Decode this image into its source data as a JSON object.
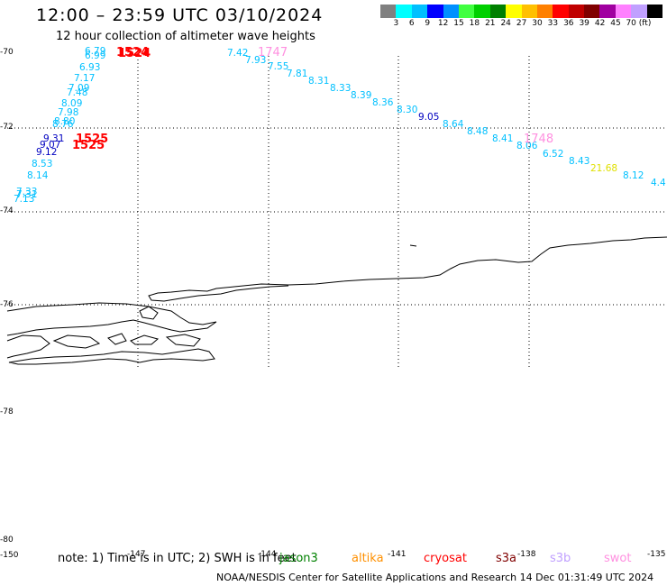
{
  "header": {
    "title": "12:00 – 23:59 UTC 03/10/2024",
    "subtitle": "12 hour collection of altimeter wave heights"
  },
  "colorbar": {
    "colors": [
      "#808080",
      "#00ffff",
      "#00c0ff",
      "#0000ff",
      "#0090ff",
      "#40ff40",
      "#00d000",
      "#008000",
      "#ffff00",
      "#ffc000",
      "#ff8000",
      "#ff0000",
      "#c00000",
      "#800000",
      "#a000a0",
      "#ff80ff",
      "#c0a0ff",
      "#000000"
    ],
    "labels": [
      "3",
      "6",
      "9",
      "12",
      "15",
      "18",
      "21",
      "24",
      "27",
      "30",
      "33",
      "36",
      "39",
      "42",
      "45",
      "70 (ft)"
    ]
  },
  "axes": {
    "lat_labels": [
      "-70",
      "-72",
      "-74",
      "-76",
      "-78",
      "-80"
    ],
    "lon_labels": [
      "-150",
      "-147",
      "-144",
      "-141",
      "-138",
      "-135"
    ]
  },
  "observations": [
    {
      "text": "6.79",
      "color": "#00c0ff"
    },
    {
      "text": "6.99",
      "color": "#00c0ff"
    },
    {
      "text": "6.93",
      "color": "#00c0ff"
    },
    {
      "text": "7.17",
      "color": "#00c0ff"
    },
    {
      "text": "7.09",
      "color": "#00c0ff"
    },
    {
      "text": "7.48",
      "color": "#00c0ff"
    },
    {
      "text": "8.09",
      "color": "#00c0ff"
    },
    {
      "text": "7.98",
      "color": "#00c0ff"
    },
    {
      "text": "8.80",
      "color": "#00c0ff"
    },
    {
      "text": "8.76",
      "color": "#00c0ff"
    },
    {
      "text": "9.31",
      "color": "#0000c0"
    },
    {
      "text": "9.07",
      "color": "#0000c0"
    },
    {
      "text": "9.12",
      "color": "#0000c0"
    },
    {
      "text": "8.53",
      "color": "#00c0ff"
    },
    {
      "text": "8.14",
      "color": "#00c0ff"
    },
    {
      "text": "7.33",
      "color": "#00c0ff"
    },
    {
      "text": "7.31",
      "color": "#00c0ff"
    },
    {
      "text": "7.13",
      "color": "#00c0ff"
    },
    {
      "text": "7.42",
      "color": "#00c0ff"
    },
    {
      "text": "7.93",
      "color": "#00c0ff"
    },
    {
      "text": "7.55",
      "color": "#00c0ff"
    },
    {
      "text": "7.81",
      "color": "#00c0ff"
    },
    {
      "text": "8.31",
      "color": "#00c0ff"
    },
    {
      "text": "8.33",
      "color": "#00c0ff"
    },
    {
      "text": "8.39",
      "color": "#00c0ff"
    },
    {
      "text": "8.36",
      "color": "#00c0ff"
    },
    {
      "text": "8.30",
      "color": "#00c0ff"
    },
    {
      "text": "9.05",
      "color": "#0000c0"
    },
    {
      "text": "8.64",
      "color": "#00c0ff"
    },
    {
      "text": "8.48",
      "color": "#00c0ff"
    },
    {
      "text": "8.41",
      "color": "#00c0ff"
    },
    {
      "text": "8.06",
      "color": "#00c0ff"
    },
    {
      "text": "6.52",
      "color": "#00c0ff"
    },
    {
      "text": "8.43",
      "color": "#00c0ff"
    },
    {
      "text": "21.68",
      "color": "#e0e000"
    },
    {
      "text": "8.12",
      "color": "#00c0ff"
    },
    {
      "text": "4.4",
      "color": "#00c0ff"
    }
  ],
  "sat_labels": [
    {
      "text": "1524",
      "color": "#ff0000"
    },
    {
      "text": "1524",
      "color": "#ff0000"
    },
    {
      "text": "1525",
      "color": "#ff0000"
    },
    {
      "text": "1525",
      "color": "#ff0000"
    },
    {
      "text": "1747",
      "color": "#ff90e0"
    },
    {
      "text": "1748",
      "color": "#ff90e0"
    }
  ],
  "note": "note: 1) Time is in UTC; 2) SWH is in feet",
  "legend": [
    {
      "text": "jason3",
      "color": "#008000"
    },
    {
      "text": "altika",
      "color": "#ff9000"
    },
    {
      "text": "cryosat",
      "color": "#ff0000"
    },
    {
      "text": "s3a",
      "color": "#800000"
    },
    {
      "text": "s3b",
      "color": "#c0a0ff"
    },
    {
      "text": "swot",
      "color": "#ff90e0"
    }
  ],
  "footer": "NOAA/NESDIS Center for Satellite Applications and Research    14 Dec 01:31:49 UTC 2024"
}
